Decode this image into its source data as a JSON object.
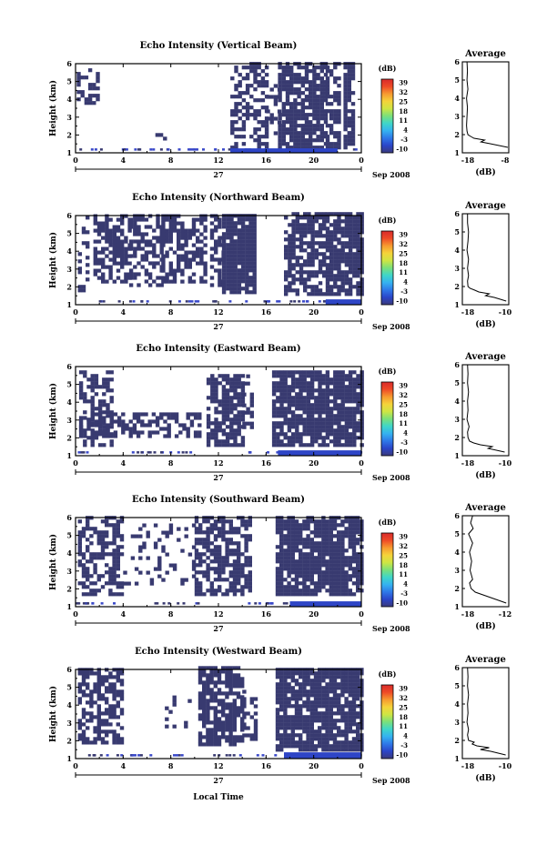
{
  "figure": {
    "xlabel": "Local Time",
    "date_label": "Sep 2008",
    "day_label": "27"
  },
  "colorbar": {
    "title": "(dB)",
    "ticks": [
      "39",
      "32",
      "25",
      "18",
      "11",
      "4",
      "-3",
      "-10"
    ],
    "colors": [
      "#3a3a7c",
      "#2b45c8",
      "#2f78e8",
      "#35b2f0",
      "#3fd6c8",
      "#7be07a",
      "#cfe543",
      "#f5d33a",
      "#f79a30",
      "#ee4a27",
      "#d92b2b"
    ]
  },
  "chart_data": [
    {
      "type": "heatmap",
      "title": "Echo Intensity (Vertical Beam)",
      "ylabel": "Height (km)",
      "xlabel": "Local Time",
      "x_ticks": [
        "0",
        "4",
        "8",
        "12",
        "16",
        "20",
        "0"
      ],
      "y_ticks": [
        "1",
        "2",
        "3",
        "4",
        "5",
        "6"
      ],
      "xlim": [
        0,
        24
      ],
      "ylim": [
        1,
        6
      ],
      "colorbar_title": "(dB)",
      "colorbar_ticks": [
        "39",
        "32",
        "25",
        "18",
        "11",
        "4",
        "-3",
        "-10"
      ],
      "segments": [
        {
          "x": [
            0.1,
            1.8
          ],
          "y": [
            3.7,
            5.7
          ],
          "density": 0.45
        },
        {
          "x": [
            6.7,
            7.6
          ],
          "y": [
            1.7,
            2.1
          ],
          "density": 0.5
        },
        {
          "x": [
            13.0,
            16.0
          ],
          "y": [
            1.2,
            6.0
          ],
          "density": 0.5
        },
        {
          "x": [
            16.0,
            17.0
          ],
          "y": [
            2.0,
            5.0
          ],
          "density": 0.25
        },
        {
          "x": [
            17.0,
            21.0
          ],
          "y": [
            1.2,
            6.0
          ],
          "density": 0.8
        },
        {
          "x": [
            21.0,
            22.0
          ],
          "y": [
            1.2,
            6.0
          ],
          "density": 0.55
        },
        {
          "x": [
            22.5,
            23.3
          ],
          "y": [
            1.2,
            6.0
          ],
          "density": 0.8
        }
      ],
      "bottom_band": [
        {
          "x": [
            13.0,
            22.0
          ],
          "height": 1.25
        }
      ],
      "avg_profile": {
        "title": "Average",
        "xlabel": "(dB)",
        "x_ticks": [
          "-18",
          "-8"
        ],
        "xlim": [
          -18,
          -8
        ],
        "y_ticks": [
          "1",
          "2",
          "3",
          "4",
          "5",
          "6"
        ],
        "height": [
          1.3,
          1.5,
          1.6,
          1.7,
          1.8,
          1.9,
          2.0,
          2.2,
          2.5,
          3.0,
          3.5,
          4.0,
          4.5,
          5.0,
          5.5,
          6.0
        ],
        "db": [
          -8.2,
          -12.0,
          -14.0,
          -13.2,
          -15.5,
          -16.2,
          -16.8,
          -17.0,
          -17.1,
          -17.0,
          -16.9,
          -17.1,
          -16.8,
          -17.0,
          -16.9,
          -17.0
        ]
      }
    },
    {
      "type": "heatmap",
      "title": "Echo Intensity (Northward Beam)",
      "ylabel": "Height (km)",
      "xlabel": "Local Time",
      "x_ticks": [
        "0",
        "4",
        "8",
        "12",
        "16",
        "20",
        "0"
      ],
      "y_ticks": [
        "1",
        "2",
        "3",
        "4",
        "5",
        "6"
      ],
      "xlim": [
        0,
        24
      ],
      "ylim": [
        1,
        6
      ],
      "colorbar_title": "(dB)",
      "colorbar_ticks": [
        "39",
        "32",
        "25",
        "18",
        "11",
        "4",
        "-3",
        "-10"
      ],
      "segments": [
        {
          "x": [
            0.2,
            1.0
          ],
          "y": [
            1.5,
            6.0
          ],
          "density": 0.35
        },
        {
          "x": [
            1.5,
            4.5
          ],
          "y": [
            2.2,
            6.0
          ],
          "density": 0.6
        },
        {
          "x": [
            4.5,
            7.2
          ],
          "y": [
            2.0,
            6.0
          ],
          "density": 0.55
        },
        {
          "x": [
            7.2,
            11.0
          ],
          "y": [
            2.2,
            6.0
          ],
          "density": 0.6
        },
        {
          "x": [
            11.3,
            12.3
          ],
          "y": [
            2.0,
            6.0
          ],
          "density": 0.5
        },
        {
          "x": [
            12.3,
            15.0
          ],
          "y": [
            1.6,
            6.0
          ],
          "density": 0.95
        },
        {
          "x": [
            17.5,
            21.0
          ],
          "y": [
            1.5,
            6.0
          ],
          "density": 0.7
        },
        {
          "x": [
            21.0,
            24.0
          ],
          "y": [
            1.5,
            6.0
          ],
          "density": 0.85
        }
      ],
      "bottom_band": [
        {
          "x": [
            21.0,
            24.0
          ],
          "height": 1.3
        }
      ],
      "avg_profile": {
        "title": "Average",
        "xlabel": "(dB)",
        "x_ticks": [
          "-18",
          "-10"
        ],
        "xlim": [
          -18,
          -9
        ],
        "y_ticks": [
          "1",
          "2",
          "3",
          "4",
          "5",
          "6"
        ],
        "height": [
          1.2,
          1.4,
          1.5,
          1.6,
          1.7,
          1.8,
          1.9,
          2.0,
          2.3,
          2.6,
          3.0,
          3.5,
          4.0,
          4.5,
          5.0,
          5.5,
          6.0
        ],
        "db": [
          -9.5,
          -11.8,
          -13.5,
          -12.8,
          -14.8,
          -15.6,
          -16.5,
          -16.9,
          -17.0,
          -16.8,
          -17.0,
          -16.8,
          -17.1,
          -16.9,
          -16.8,
          -17.0,
          -17.0
        ]
      }
    },
    {
      "type": "heatmap",
      "title": "Echo Intensity (Eastward Beam)",
      "ylabel": "Height (km)",
      "xlabel": "Local Time",
      "x_ticks": [
        "0",
        "4",
        "8",
        "12",
        "16",
        "20",
        "0"
      ],
      "y_ticks": [
        "1",
        "2",
        "3",
        "4",
        "5",
        "6"
      ],
      "xlim": [
        0,
        24
      ],
      "ylim": [
        1,
        6
      ],
      "colorbar_title": "(dB)",
      "colorbar_ticks": [
        "39",
        "32",
        "25",
        "18",
        "11",
        "4",
        "-3",
        "-10"
      ],
      "segments": [
        {
          "x": [
            0.3,
            3.0
          ],
          "y": [
            1.5,
            5.7
          ],
          "density": 0.5
        },
        {
          "x": [
            0.3,
            10.5
          ],
          "y": [
            2.0,
            3.3
          ],
          "density": 0.55
        },
        {
          "x": [
            11.0,
            14.0
          ],
          "y": [
            1.5,
            5.5
          ],
          "density": 0.75
        },
        {
          "x": [
            14.0,
            14.8
          ],
          "y": [
            2.5,
            5.5
          ],
          "density": 0.4
        },
        {
          "x": [
            16.5,
            24.0
          ],
          "y": [
            1.5,
            5.6
          ],
          "density": 0.85
        }
      ],
      "bottom_band": [
        {
          "x": [
            17.0,
            24.0
          ],
          "height": 1.3
        }
      ],
      "avg_profile": {
        "title": "Average",
        "xlabel": "(dB)",
        "x_ticks": [
          "-18",
          "-10"
        ],
        "xlim": [
          -18,
          -9
        ],
        "y_ticks": [
          "1",
          "2",
          "3",
          "4",
          "5",
          "6"
        ],
        "height": [
          1.2,
          1.4,
          1.5,
          1.6,
          1.7,
          1.8,
          2.0,
          2.3,
          2.6,
          3.0,
          3.5,
          4.0,
          4.5,
          5.0,
          5.5,
          6.0
        ],
        "db": [
          -9.8,
          -13.0,
          -12.2,
          -14.5,
          -15.8,
          -16.6,
          -16.9,
          -17.0,
          -16.7,
          -17.1,
          -16.9,
          -17.0,
          -16.8,
          -17.0,
          -16.9,
          -17.0
        ]
      }
    },
    {
      "type": "heatmap",
      "title": "Echo Intensity (Southward Beam)",
      "ylabel": "Height (km)",
      "xlabel": "Local Time",
      "x_ticks": [
        "0",
        "4",
        "8",
        "12",
        "16",
        "20",
        "0"
      ],
      "y_ticks": [
        "1",
        "2",
        "3",
        "4",
        "5",
        "6"
      ],
      "xlim": [
        0,
        24
      ],
      "ylim": [
        1,
        6
      ],
      "colorbar_title": "(dB)",
      "colorbar_ticks": [
        "39",
        "32",
        "25",
        "18",
        "11",
        "4",
        "-3",
        "-10"
      ],
      "segments": [
        {
          "x": [
            0.2,
            4.0
          ],
          "y": [
            1.6,
            6.0
          ],
          "density": 0.55
        },
        {
          "x": [
            4.0,
            10.0
          ],
          "y": [
            2.2,
            5.5
          ],
          "density": 0.2
        },
        {
          "x": [
            10.0,
            14.5
          ],
          "y": [
            1.6,
            6.0
          ],
          "density": 0.7
        },
        {
          "x": [
            16.8,
            24.0
          ],
          "y": [
            1.6,
            6.0
          ],
          "density": 0.85
        }
      ],
      "bottom_band": [
        {
          "x": [
            18.0,
            24.0
          ],
          "height": 1.3
        }
      ],
      "avg_profile": {
        "title": "Average",
        "xlabel": "(dB)",
        "x_ticks": [
          "-18",
          "-12"
        ],
        "xlim": [
          -19,
          -10
        ],
        "y_ticks": [
          "1",
          "2",
          "3",
          "4",
          "5",
          "6"
        ],
        "height": [
          1.2,
          1.5,
          1.8,
          2.0,
          2.3,
          2.5,
          3.0,
          3.5,
          4.0,
          4.5,
          5.0,
          5.3,
          5.6,
          6.0
        ],
        "db": [
          -10.5,
          -13.5,
          -16.5,
          -17.3,
          -17.6,
          -17.0,
          -17.5,
          -17.2,
          -17.6,
          -17.0,
          -17.8,
          -16.9,
          -17.4,
          -17.0
        ]
      }
    },
    {
      "type": "heatmap",
      "title": "Echo Intensity (Westward Beam)",
      "ylabel": "Height (km)",
      "xlabel": "Local Time",
      "x_ticks": [
        "0",
        "4",
        "8",
        "12",
        "16",
        "20",
        "0"
      ],
      "y_ticks": [
        "1",
        "2",
        "3",
        "4",
        "5",
        "6"
      ],
      "xlim": [
        0,
        24
      ],
      "ylim": [
        1,
        6
      ],
      "colorbar_title": "(dB)",
      "colorbar_ticks": [
        "39",
        "32",
        "25",
        "18",
        "11",
        "4",
        "-3",
        "-10"
      ],
      "segments": [
        {
          "x": [
            0.2,
            4.0
          ],
          "y": [
            1.8,
            6.0
          ],
          "density": 0.6
        },
        {
          "x": [
            7.5,
            9.5
          ],
          "y": [
            2.5,
            4.5
          ],
          "density": 0.15
        },
        {
          "x": [
            10.3,
            14.0
          ],
          "y": [
            1.7,
            6.0
          ],
          "density": 0.7
        },
        {
          "x": [
            14.0,
            15.0
          ],
          "y": [
            2.0,
            5.0
          ],
          "density": 0.3
        },
        {
          "x": [
            16.8,
            24.0
          ],
          "y": [
            1.4,
            6.0
          ],
          "density": 0.85
        }
      ],
      "bottom_band": [
        {
          "x": [
            17.5,
            24.0
          ],
          "height": 1.35
        }
      ],
      "avg_profile": {
        "title": "Average",
        "xlabel": "(dB)",
        "x_ticks": [
          "-18",
          "-10"
        ],
        "xlim": [
          -18,
          -9
        ],
        "y_ticks": [
          "1",
          "2",
          "3",
          "4",
          "5",
          "6"
        ],
        "height": [
          1.2,
          1.4,
          1.5,
          1.6,
          1.7,
          1.8,
          1.9,
          2.0,
          2.3,
          2.6,
          3.0,
          3.5,
          4.0,
          4.5,
          5.0,
          5.5,
          6.0
        ],
        "db": [
          -9.6,
          -12.5,
          -14.5,
          -12.8,
          -15.2,
          -16.1,
          -15.7,
          -16.8,
          -17.0,
          -16.8,
          -17.1,
          -16.9,
          -17.0,
          -16.8,
          -17.0,
          -16.9,
          -17.0
        ]
      }
    }
  ]
}
